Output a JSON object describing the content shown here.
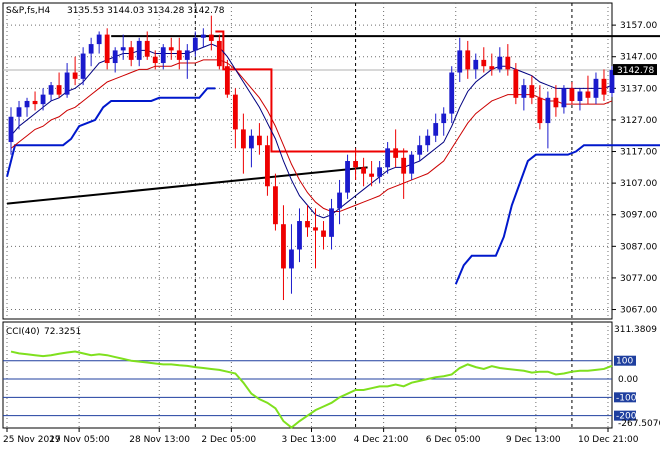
{
  "header": {
    "symbol": "S&P,fs,H4",
    "ohlc": "3135.53 3144.03 3134.28 3142.78"
  },
  "colors": {
    "bull": "#1a1acc",
    "bear": "#ee0000",
    "fast_ma": "#000080",
    "slow_ma": "#cc0000",
    "band": "#0018cc",
    "trend": "#000000",
    "stop": "#ee0000",
    "cci": "#7fe01e",
    "cci_level": "#1f3f9f",
    "grid": "#6e6e6e",
    "price_tag": "#000000"
  },
  "chart_data": [
    {
      "type": "candlestick",
      "title": "",
      "symbol": "S&P,fs,H4",
      "ylim": [
        3064,
        3164
      ],
      "price_ticks": [
        "3157.00",
        "3147.00",
        "3137.00",
        "3127.00",
        "3117.00",
        "3107.00",
        "3097.00",
        "3087.00",
        "3077.00",
        "3067.00"
      ],
      "current_price": "3142.78",
      "time_ticks": [
        "25 Nov 2019",
        "27 Nov 05:00",
        "28 Nov 13:00",
        "2 Dec 05:00",
        "3 Dec 13:00",
        "4 Dec 21:00",
        "6 Dec 05:00",
        "9 Dec 13:00",
        "10 Dec 21:00"
      ],
      "candles": [
        [
          3120,
          3131,
          3116,
          3128
        ],
        [
          3128,
          3133,
          3124,
          3131
        ],
        [
          3131,
          3134,
          3128,
          3133
        ],
        [
          3133,
          3136,
          3130,
          3132
        ],
        [
          3132,
          3137,
          3130,
          3135
        ],
        [
          3135,
          3139,
          3133,
          3138
        ],
        [
          3138,
          3142,
          3134,
          3135
        ],
        [
          3135,
          3145,
          3134,
          3142
        ],
        [
          3142,
          3147,
          3138,
          3140
        ],
        [
          3140,
          3150,
          3138,
          3148
        ],
        [
          3148,
          3153,
          3144,
          3151
        ],
        [
          3151,
          3155,
          3148,
          3154
        ],
        [
          3154,
          3156,
          3143,
          3145
        ],
        [
          3145,
          3150,
          3142,
          3149
        ],
        [
          3149,
          3154,
          3146,
          3150
        ],
        [
          3150,
          3152,
          3144,
          3146
        ],
        [
          3146,
          3153,
          3144,
          3152
        ],
        [
          3152,
          3155,
          3146,
          3147
        ],
        [
          3147,
          3149,
          3143,
          3145
        ],
        [
          3145,
          3151,
          3143,
          3150
        ],
        [
          3150,
          3153,
          3146,
          3149
        ],
        [
          3149,
          3153,
          3143,
          3146
        ],
        [
          3146,
          3151,
          3140,
          3149
        ],
        [
          3149,
          3155,
          3147,
          3153
        ],
        [
          3153,
          3156,
          3150,
          3154
        ],
        [
          3154,
          3160,
          3149,
          3152
        ],
        [
          3152,
          3154,
          3143,
          3144
        ],
        [
          3144,
          3146,
          3134,
          3135
        ],
        [
          3135,
          3137,
          3118,
          3124
        ],
        [
          3124,
          3129,
          3110,
          3118
        ],
        [
          3118,
          3124,
          3112,
          3122
        ],
        [
          3122,
          3126,
          3116,
          3119
        ],
        [
          3119,
          3122,
          3103,
          3106
        ],
        [
          3106,
          3110,
          3092,
          3094
        ],
        [
          3094,
          3100,
          3070,
          3080
        ],
        [
          3080,
          3094,
          3072,
          3086
        ],
        [
          3086,
          3099,
          3082,
          3095
        ],
        [
          3095,
          3100,
          3090,
          3093
        ],
        [
          3093,
          3099,
          3080,
          3092
        ],
        [
          3092,
          3095,
          3086,
          3090
        ],
        [
          3090,
          3102,
          3086,
          3099
        ],
        [
          3099,
          3108,
          3094,
          3104
        ],
        [
          3104,
          3116,
          3102,
          3114
        ],
        [
          3114,
          3118,
          3108,
          3112
        ],
        [
          3112,
          3115,
          3106,
          3110
        ],
        [
          3110,
          3114,
          3106,
          3109
        ],
        [
          3109,
          3114,
          3107,
          3112
        ],
        [
          3112,
          3120,
          3110,
          3118
        ],
        [
          3118,
          3124,
          3112,
          3115
        ],
        [
          3115,
          3118,
          3102,
          3110
        ],
        [
          3110,
          3117,
          3108,
          3116
        ],
        [
          3116,
          3122,
          3114,
          3119
        ],
        [
          3119,
          3124,
          3117,
          3122
        ],
        [
          3122,
          3129,
          3120,
          3126
        ],
        [
          3126,
          3131,
          3122,
          3129
        ],
        [
          3129,
          3144,
          3126,
          3142
        ],
        [
          3142,
          3153,
          3139,
          3149
        ],
        [
          3149,
          3152,
          3140,
          3143
        ],
        [
          3143,
          3148,
          3140,
          3146
        ],
        [
          3146,
          3150,
          3142,
          3144
        ],
        [
          3144,
          3148,
          3141,
          3143
        ],
        [
          3143,
          3150,
          3142,
          3147
        ],
        [
          3147,
          3151,
          3141,
          3143
        ],
        [
          3143,
          3145,
          3132,
          3134
        ],
        [
          3134,
          3140,
          3130,
          3138
        ],
        [
          3138,
          3141,
          3132,
          3134
        ],
        [
          3134,
          3138,
          3124,
          3126
        ],
        [
          3126,
          3136,
          3118,
          3134
        ],
        [
          3134,
          3138,
          3128,
          3131
        ],
        [
          3131,
          3138,
          3129,
          3137
        ],
        [
          3137,
          3139,
          3132,
          3133
        ],
        [
          3133,
          3137,
          3130,
          3136
        ],
        [
          3136,
          3141,
          3132,
          3134
        ],
        [
          3134,
          3142,
          3132,
          3140
        ],
        [
          3140,
          3143,
          3133,
          3135
        ],
        [
          3135.53,
          3144.03,
          3134.28,
          3142.78
        ]
      ],
      "fast_ma": [
        3122,
        3125,
        3127,
        3129,
        3131,
        3133,
        3134,
        3136,
        3137,
        3139,
        3142,
        3145,
        3146,
        3147,
        3148,
        3148,
        3149,
        3149,
        3148,
        3148,
        3148,
        3148,
        3148,
        3149,
        3150,
        3151,
        3150,
        3147,
        3143,
        3139,
        3135,
        3131,
        3126,
        3121,
        3114,
        3108,
        3103,
        3100,
        3097,
        3096,
        3097,
        3099,
        3101,
        3103,
        3105,
        3107,
        3109,
        3111,
        3112,
        3112,
        3113,
        3114,
        3116,
        3118,
        3120,
        3125,
        3131,
        3136,
        3139,
        3141,
        3143,
        3144,
        3144,
        3143,
        3142,
        3141,
        3139,
        3138,
        3137,
        3137,
        3137,
        3137,
        3137,
        3137,
        3137,
        3138
      ],
      "slow_ma": [
        3118,
        3120,
        3122,
        3124,
        3125,
        3127,
        3128,
        3130,
        3131,
        3133,
        3135,
        3137,
        3139,
        3140,
        3141,
        3142,
        3143,
        3143,
        3144,
        3144,
        3144,
        3145,
        3145,
        3145,
        3146,
        3146,
        3146,
        3145,
        3143,
        3140,
        3137,
        3134,
        3130,
        3125,
        3119,
        3113,
        3108,
        3104,
        3101,
        3099,
        3098,
        3098,
        3099,
        3100,
        3101,
        3102,
        3103,
        3105,
        3106,
        3107,
        3108,
        3109,
        3110,
        3112,
        3114,
        3118,
        3122,
        3126,
        3129,
        3131,
        3133,
        3134,
        3135,
        3135,
        3135,
        3135,
        3134,
        3133,
        3133,
        3132,
        3132,
        3132,
        3132,
        3132,
        3132,
        3133
      ],
      "lower_band": [
        [
          0,
          3109
        ],
        [
          1,
          3119
        ],
        [
          2,
          3119
        ],
        [
          3,
          3119
        ],
        [
          4,
          3119
        ],
        [
          5,
          3119
        ],
        [
          6,
          3119
        ],
        [
          7,
          3119
        ],
        [
          8,
          3121
        ],
        [
          9,
          3125
        ],
        [
          10,
          3126
        ],
        [
          11,
          3127
        ],
        [
          12,
          3131
        ],
        [
          13,
          3133
        ],
        [
          14,
          3133
        ],
        [
          15,
          3133
        ],
        [
          16,
          3133
        ],
        [
          17,
          3133
        ],
        [
          18,
          3133
        ],
        [
          19,
          3134
        ],
        [
          20,
          3134
        ],
        [
          21,
          3134
        ],
        [
          22,
          3134
        ],
        [
          23,
          3134
        ],
        [
          24,
          3134
        ],
        [
          25,
          3137
        ],
        [
          26,
          3137
        ],
        [
          56,
          3075
        ],
        [
          57,
          3081
        ],
        [
          58,
          3084
        ],
        [
          59,
          3084
        ],
        [
          60,
          3084
        ],
        [
          61,
          3084
        ],
        [
          62,
          3090
        ],
        [
          63,
          3100
        ],
        [
          64,
          3107
        ],
        [
          65,
          3114
        ],
        [
          66,
          3116
        ],
        [
          67,
          3116
        ],
        [
          68,
          3116
        ],
        [
          69,
          3116
        ],
        [
          70,
          3116
        ],
        [
          71,
          3117
        ],
        [
          72,
          3119
        ],
        [
          73,
          3119
        ],
        [
          74,
          3119
        ],
        [
          75,
          3119
        ],
        [
          76,
          3119
        ],
        [
          77,
          3119
        ],
        [
          78,
          3119
        ],
        [
          79,
          3119
        ],
        [
          80,
          3119
        ],
        [
          81,
          3119
        ],
        [
          82,
          3119
        ],
        [
          83,
          3119
        ],
        [
          84,
          3119
        ],
        [
          85,
          3119
        ],
        [
          86,
          3119
        ],
        [
          87,
          3119
        ],
        [
          88,
          3119
        ],
        [
          89,
          3119
        ],
        [
          90,
          3119
        ],
        [
          91,
          3119
        ],
        [
          92,
          3119
        ],
        [
          93,
          3119
        ]
      ],
      "upper_resistance": {
        "from": 13,
        "to": 82,
        "price": 3153.5
      },
      "trendline": {
        "from": [
          0,
          3100.5
        ],
        "to": [
          45,
          3112
        ]
      },
      "stop_line": [
        [
          26,
          3155
        ],
        [
          27,
          3155
        ],
        [
          27,
          3143
        ],
        [
          33,
          3143
        ],
        [
          33,
          3117
        ],
        [
          38,
          3117
        ],
        [
          38,
          3117
        ],
        [
          42,
          3117
        ],
        [
          42,
          3117
        ],
        [
          50,
          3117
        ]
      ],
      "vertical_markers": [
        23,
        43,
        70
      ]
    },
    {
      "type": "line",
      "title": "",
      "indicator": "CCI(40)",
      "value": "72.3251",
      "ylim": [
        -267.5076,
        311.3809
      ],
      "levels": [
        "100",
        "0.00",
        "-100",
        "-200"
      ],
      "range_labels": [
        "311.3809",
        "-267.5076"
      ],
      "values": [
        150,
        140,
        135,
        130,
        125,
        130,
        138,
        145,
        150,
        140,
        130,
        135,
        130,
        120,
        110,
        100,
        95,
        90,
        85,
        80,
        80,
        75,
        72,
        65,
        60,
        55,
        50,
        40,
        30,
        -20,
        -80,
        -110,
        -130,
        -160,
        -230,
        -265,
        -230,
        -200,
        -170,
        -150,
        -130,
        -100,
        -80,
        -60,
        -60,
        -50,
        -40,
        -40,
        -30,
        -40,
        -20,
        -10,
        0,
        10,
        15,
        25,
        60,
        80,
        65,
        55,
        70,
        60,
        55,
        50,
        45,
        35,
        40,
        40,
        25,
        30,
        40,
        45,
        45,
        50,
        55,
        72
      ]
    }
  ]
}
